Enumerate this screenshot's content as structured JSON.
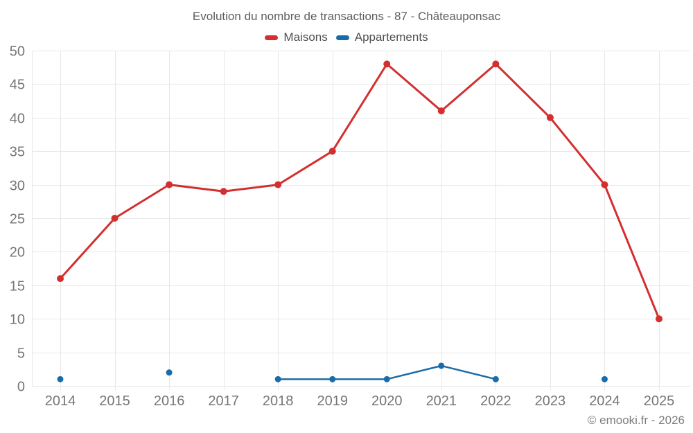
{
  "chart_data": {
    "type": "line",
    "title": "Evolution du nombre de transactions - 87 - Châteauponsac",
    "categories": [
      "2014",
      "2015",
      "2016",
      "2017",
      "2018",
      "2019",
      "2020",
      "2021",
      "2022",
      "2023",
      "2024",
      "2025"
    ],
    "series": [
      {
        "name": "Maisons",
        "color": "#d32f2f",
        "values": [
          16,
          25,
          30,
          29,
          30,
          35,
          48,
          41,
          48,
          40,
          30,
          10
        ]
      },
      {
        "name": "Appartements",
        "color": "#1a6ca8",
        "values": [
          1,
          null,
          2,
          null,
          1,
          1,
          1,
          3,
          1,
          null,
          1,
          null
        ]
      }
    ],
    "xlabel": "",
    "ylabel": "",
    "ylim": [
      0,
      50
    ],
    "y_tick_step": 5,
    "grid": true,
    "legend_position": "top"
  },
  "footer": {
    "copyright": "© emooki.fr - 2026"
  },
  "colors": {
    "grid": "#e7e7e7",
    "axis_text": "#757575",
    "title_text": "#5d5d5d",
    "legend_text": "#4f4f4f",
    "footer_text": "#7d7d7d",
    "background": "#ffffff"
  }
}
